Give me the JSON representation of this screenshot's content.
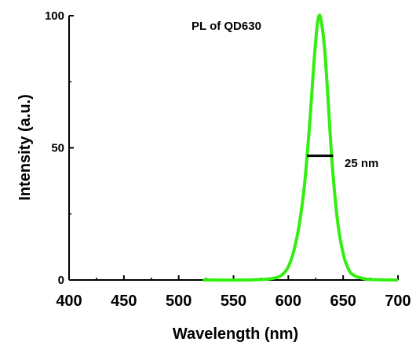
{
  "chart_data": {
    "type": "line",
    "xlabel": "Wavelength (nm)",
    "ylabel": "Intensity (a.u.)",
    "xlim": [
      400,
      700
    ],
    "ylim": [
      0,
      100
    ],
    "x_ticks": [
      "400",
      "450",
      "500",
      "550",
      "600",
      "650",
      "700"
    ],
    "y_ticks": [
      "0",
      "50",
      "100"
    ],
    "grid": false,
    "line_color": "#33ee11",
    "series": [
      {
        "x": [
          522,
          560,
          580,
          590,
          595,
          600,
          605,
          610,
          615,
          620,
          623,
          626,
          628,
          630,
          633,
          636,
          640,
          645,
          650,
          655,
          660,
          670,
          680,
          700
        ],
        "y": [
          0,
          0,
          0.3,
          1,
          2.2,
          5,
          11,
          21,
          37,
          62,
          80,
          95,
          100,
          98,
          88,
          70,
          44,
          22,
          10,
          4,
          1.7,
          0.4,
          0.1,
          0
        ]
      }
    ],
    "annotations": [
      {
        "text": "PL of QD630"
      },
      {
        "text": "25 nm",
        "fwhm_x": [
          617,
          641
        ],
        "fwhm_y": 47
      }
    ]
  }
}
